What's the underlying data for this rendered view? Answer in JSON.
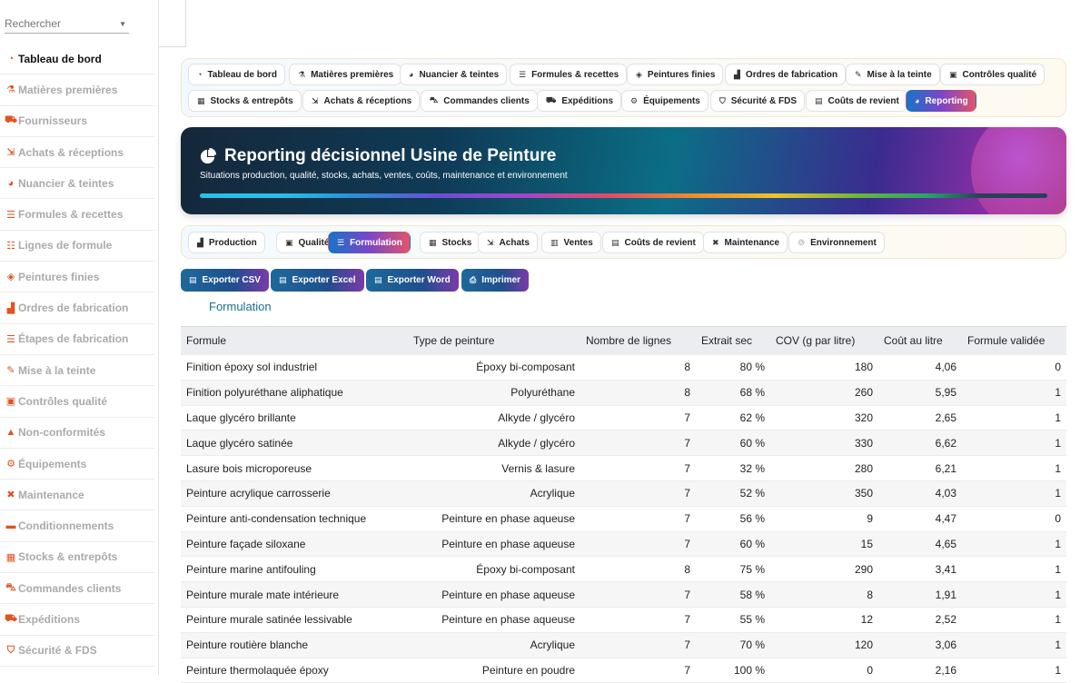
{
  "search": {
    "placeholder": "Rechercher"
  },
  "sidebar": {
    "items": [
      {
        "label": "Tableau de bord",
        "icon": "gauge-icon",
        "active": true
      },
      {
        "label": "Matières premières",
        "icon": "flask-icon"
      },
      {
        "label": "Fournisseurs",
        "icon": "truck-icon"
      },
      {
        "label": "Achats & réceptions",
        "icon": "dolly-icon"
      },
      {
        "label": "Nuancier & teintes",
        "icon": "palette-icon"
      },
      {
        "label": "Formules & recettes",
        "icon": "recipe-icon"
      },
      {
        "label": "Lignes de formule",
        "icon": "list-icon"
      },
      {
        "label": "Peintures finies",
        "icon": "paint-bucket-icon"
      },
      {
        "label": "Ordres de fabrication",
        "icon": "factory-icon"
      },
      {
        "label": "Étapes de fabrication",
        "icon": "steps-icon"
      },
      {
        "label": "Mise à la teinte",
        "icon": "brush-icon"
      },
      {
        "label": "Contrôles qualité",
        "icon": "clipboard-check-icon"
      },
      {
        "label": "Non-conformités",
        "icon": "warning-icon"
      },
      {
        "label": "Équipements",
        "icon": "gears-icon"
      },
      {
        "label": "Maintenance",
        "icon": "tools-icon"
      },
      {
        "label": "Conditionnements",
        "icon": "box-icon"
      },
      {
        "label": "Stocks & entrepôts",
        "icon": "warehouse-icon"
      },
      {
        "label": "Commandes clients",
        "icon": "cart-icon"
      },
      {
        "label": "Expéditions",
        "icon": "shipping-icon"
      },
      {
        "label": "Sécurité & FDS",
        "icon": "shield-icon"
      }
    ]
  },
  "topnav": {
    "row1": [
      "Tableau de bord",
      "Matières premières",
      "Nuancier & teintes",
      "Formules & recettes",
      "Peintures finies",
      "Ordres de fabrication",
      "Mise à la teinte",
      "Contrôles qualité"
    ],
    "row2": [
      "Stocks & entrepôts",
      "Achats & réceptions",
      "Commandes clients",
      "Expéditions",
      "Équipements",
      "Sécurité & FDS",
      "Coûts de revient",
      "Reporting"
    ],
    "active": "Reporting"
  },
  "banner": {
    "title": "Reporting décisionnel Usine de Peinture",
    "subtitle": "Situations production, qualité, stocks, achats, ventes, coûts, maintenance et environnement"
  },
  "subnav": {
    "tabs": [
      "Production",
      "Qualité",
      "Formulation",
      "Stocks",
      "Achats",
      "Ventes",
      "Coûts de revient",
      "Maintenance",
      "Environnement"
    ],
    "active": "Formulation"
  },
  "exports": {
    "csv": "Exporter CSV",
    "excel": "Exporter Excel",
    "word": "Exporter Word",
    "print": "Imprimer"
  },
  "section": {
    "title": "Formulation"
  },
  "table": {
    "columns": [
      "Formule",
      "Type de peinture",
      "Nombre de lignes",
      "Extrait sec",
      "COV (g par litre)",
      "Coût au litre",
      "Formule validée"
    ],
    "rows": [
      [
        "Finition époxy sol industriel",
        "Époxy bi-composant",
        "8",
        "80 %",
        "180",
        "4,06",
        "0"
      ],
      [
        "Finition polyuréthane aliphatique",
        "Polyuréthane",
        "8",
        "68 %",
        "260",
        "5,95",
        "1"
      ],
      [
        "Laque glycéro brillante",
        "Alkyde / glycéro",
        "7",
        "62 %",
        "320",
        "2,65",
        "1"
      ],
      [
        "Laque glycéro satinée",
        "Alkyde / glycéro",
        "7",
        "60 %",
        "330",
        "6,62",
        "1"
      ],
      [
        "Lasure bois microporeuse",
        "Vernis & lasure",
        "7",
        "32 %",
        "280",
        "6,21",
        "1"
      ],
      [
        "Peinture acrylique carrosserie",
        "Acrylique",
        "7",
        "52 %",
        "350",
        "4,03",
        "1"
      ],
      [
        "Peinture anti-condensation technique",
        "Peinture en phase aqueuse",
        "7",
        "56 %",
        "9",
        "4,47",
        "0"
      ],
      [
        "Peinture façade siloxane",
        "Peinture en phase aqueuse",
        "7",
        "60 %",
        "15",
        "4,65",
        "1"
      ],
      [
        "Peinture marine antifouling",
        "Époxy bi-composant",
        "8",
        "75 %",
        "290",
        "3,41",
        "1"
      ],
      [
        "Peinture murale mate intérieure",
        "Peinture en phase aqueuse",
        "7",
        "58 %",
        "8",
        "1,91",
        "1"
      ],
      [
        "Peinture murale satinée lessivable",
        "Peinture en phase aqueuse",
        "7",
        "55 %",
        "12",
        "2,52",
        "1"
      ],
      [
        "Peinture routière blanche",
        "Acrylique",
        "7",
        "70 %",
        "120",
        "3,06",
        "1"
      ],
      [
        "Peinture thermolaquée époxy",
        "Peinture en poudre",
        "7",
        "100 %",
        "0",
        "2,16",
        "1"
      ]
    ]
  }
}
